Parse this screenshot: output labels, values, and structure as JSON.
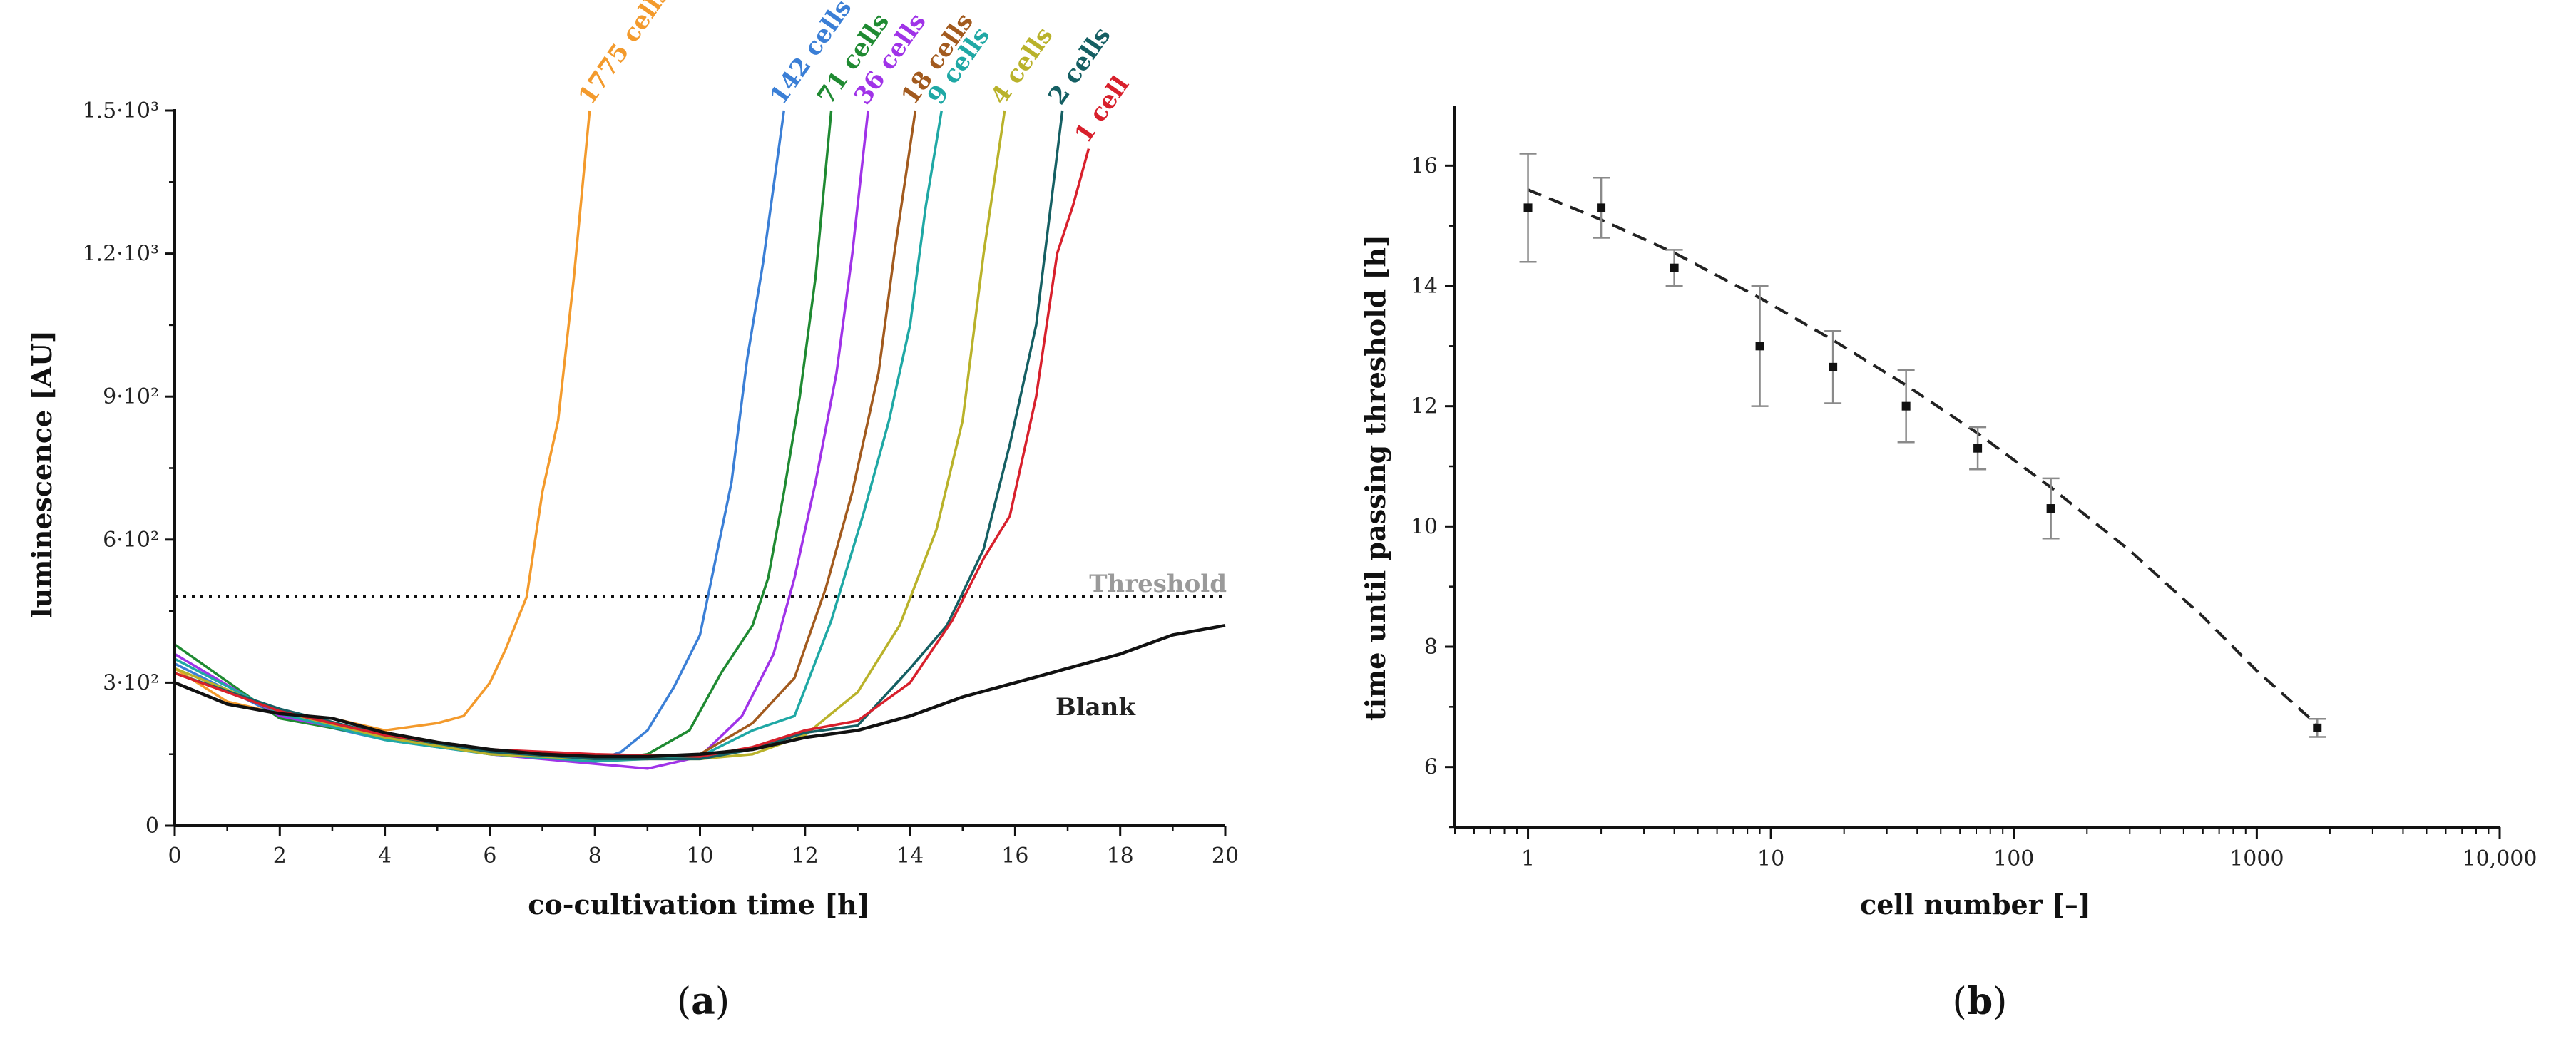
{
  "chart_data": [
    {
      "type": "line",
      "panel_label_open": "(",
      "panel_label": "a",
      "panel_label_close": ")",
      "xlabel": "co-cultivation time [h]",
      "ylabel": "luminescence [AU]",
      "xlim": [
        0,
        20
      ],
      "ylim": [
        0,
        1500
      ],
      "x_ticks": [
        0,
        2,
        4,
        6,
        8,
        10,
        12,
        14,
        16,
        18,
        20
      ],
      "y_ticks": [
        {
          "value": 0,
          "label": "0"
        },
        {
          "value": 300,
          "label": "3·10²"
        },
        {
          "value": 600,
          "label": "6·10²"
        },
        {
          "value": 900,
          "label": "9·10²"
        },
        {
          "value": 1200,
          "label": "1.2·10³"
        },
        {
          "value": 1500,
          "label": "1.5·10³"
        }
      ],
      "threshold": {
        "value": 480,
        "label": "Threshold",
        "color": "#9a9a9a"
      },
      "series": [
        {
          "name": "1775 cells",
          "color": "#f39a2c",
          "x": [
            0,
            1,
            2,
            3,
            4,
            5,
            5.5,
            6,
            6.3,
            6.7,
            7.0,
            7.3,
            7.6,
            7.9
          ],
          "y": [
            330,
            260,
            235,
            225,
            200,
            215,
            230,
            300,
            370,
            480,
            700,
            850,
            1150,
            1500
          ]
        },
        {
          "name": "142 cells",
          "color": "#3b7fd6",
          "x": [
            0,
            2,
            4,
            6,
            8,
            8.5,
            9,
            9.5,
            10,
            10.3,
            10.6,
            10.9,
            11.2,
            11.6
          ],
          "y": [
            340,
            230,
            180,
            150,
            135,
            155,
            200,
            290,
            400,
            560,
            720,
            980,
            1180,
            1500
          ]
        },
        {
          "name": "71 cells",
          "color": "#1f8a32",
          "x": [
            0,
            2,
            4,
            6,
            8,
            9,
            9.8,
            10.4,
            11,
            11.3,
            11.6,
            11.9,
            12.2,
            12.5
          ],
          "y": [
            380,
            225,
            185,
            150,
            135,
            150,
            200,
            320,
            420,
            520,
            700,
            900,
            1150,
            1500
          ]
        },
        {
          "name": "36 cells",
          "color": "#a033e8",
          "x": [
            0,
            2,
            4,
            6,
            8,
            9,
            10,
            10.8,
            11.4,
            11.8,
            12.2,
            12.6,
            12.9,
            13.2
          ],
          "y": [
            360,
            230,
            185,
            150,
            130,
            120,
            145,
            230,
            360,
            520,
            720,
            950,
            1200,
            1500
          ]
        },
        {
          "name": "18 cells",
          "color": "#a25a1e",
          "x": [
            0,
            2,
            4,
            6,
            8,
            9,
            10,
            11,
            11.8,
            12.4,
            12.9,
            13.4,
            13.7,
            14.1
          ],
          "y": [
            320,
            240,
            190,
            155,
            145,
            140,
            150,
            215,
            310,
            500,
            700,
            950,
            1200,
            1500
          ]
        },
        {
          "name": "9 cells",
          "color": "#1fa8a5",
          "x": [
            0,
            2,
            4,
            6,
            8,
            10,
            11,
            11.8,
            12.5,
            13.1,
            13.6,
            14.0,
            14.3,
            14.6
          ],
          "y": [
            350,
            235,
            180,
            150,
            135,
            145,
            200,
            230,
            430,
            650,
            850,
            1050,
            1300,
            1500
          ]
        },
        {
          "name": "4 cells",
          "color": "#b9b22a",
          "x": [
            0,
            2,
            4,
            6,
            8,
            10,
            11,
            12,
            13,
            13.8,
            14.5,
            15.0,
            15.4,
            15.8
          ],
          "y": [
            330,
            240,
            185,
            150,
            140,
            140,
            150,
            190,
            280,
            420,
            620,
            850,
            1200,
            1500
          ]
        },
        {
          "name": "2 cells",
          "color": "#155f63",
          "x": [
            0,
            2,
            4,
            6,
            8,
            10,
            11,
            12,
            13,
            14,
            14.7,
            15.4,
            15.9,
            16.4,
            16.9
          ],
          "y": [
            320,
            245,
            190,
            155,
            140,
            140,
            160,
            195,
            210,
            330,
            420,
            580,
            800,
            1050,
            1500
          ]
        },
        {
          "name": "1 cell",
          "color": "#d8202c",
          "x": [
            0,
            2,
            4,
            6,
            8,
            10,
            11,
            12,
            13,
            14,
            14.8,
            15.4,
            15.9,
            16.4,
            16.8,
            17.1,
            17.4
          ],
          "y": [
            320,
            240,
            190,
            160,
            150,
            145,
            165,
            200,
            220,
            300,
            430,
            560,
            650,
            900,
            1200,
            1300,
            1420
          ]
        },
        {
          "name": "Blank",
          "color": "#111111",
          "x": [
            0,
            1,
            2,
            3,
            4,
            5,
            6,
            7,
            8,
            9,
            10,
            11,
            12,
            13,
            14,
            15,
            16,
            17,
            18,
            19,
            20
          ],
          "y": [
            300,
            255,
            235,
            225,
            195,
            175,
            160,
            150,
            145,
            145,
            150,
            160,
            185,
            200,
            230,
            270,
            300,
            330,
            360,
            400,
            420
          ]
        }
      ]
    },
    {
      "type": "scatter",
      "panel_label_open": "(",
      "panel_label": "b",
      "panel_label_close": ")",
      "xlabel": "cell number [–]",
      "ylabel": "time until passing threshold [h]",
      "x_scale": "log",
      "xlim": [
        0.5,
        10000
      ],
      "ylim": [
        5,
        17
      ],
      "x_ticks": [
        {
          "value": 1,
          "label": "1"
        },
        {
          "value": 10,
          "label": "10"
        },
        {
          "value": 100,
          "label": "100"
        },
        {
          "value": 1000,
          "label": "1000"
        },
        {
          "value": 10000,
          "label": "10,000"
        }
      ],
      "y_ticks": [
        6,
        8,
        10,
        12,
        14,
        16
      ],
      "points": [
        {
          "x": 1,
          "y": 15.3,
          "err": 0.9
        },
        {
          "x": 2,
          "y": 15.3,
          "err": 0.5
        },
        {
          "x": 4,
          "y": 14.3,
          "err": 0.3
        },
        {
          "x": 9,
          "y": 13.0,
          "err": 1.0
        },
        {
          "x": 18,
          "y": 12.65,
          "err": 0.6
        },
        {
          "x": 36,
          "y": 12.0,
          "err": 0.6
        },
        {
          "x": 71,
          "y": 11.3,
          "err": 0.35
        },
        {
          "x": 142,
          "y": 10.3,
          "err": 0.5
        },
        {
          "x": 1775,
          "y": 6.65,
          "err": 0.15
        }
      ],
      "fit_line": {
        "style": "dashed",
        "x": [
          1,
          2,
          4,
          9,
          18,
          36,
          71,
          142,
          300,
          600,
          1000,
          1775
        ],
        "y": [
          15.6,
          15.1,
          14.55,
          13.8,
          13.1,
          12.35,
          11.55,
          10.65,
          9.6,
          8.5,
          7.6,
          6.7
        ]
      }
    }
  ]
}
